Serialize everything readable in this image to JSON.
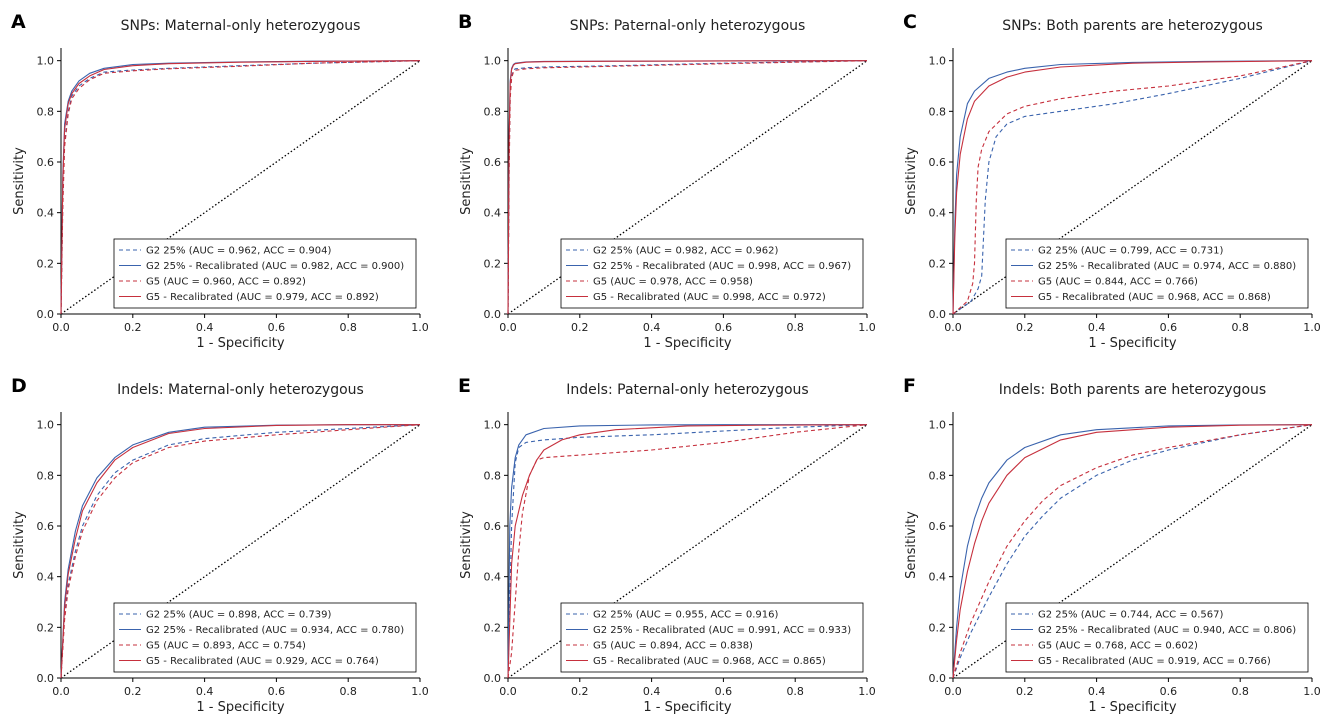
{
  "figure": {
    "colors": {
      "blue": "#3a63ad",
      "red": "#c6303d",
      "diagonal": "#000000"
    },
    "series_style": [
      {
        "color": "blue",
        "dash": "dashed"
      },
      {
        "color": "blue",
        "dash": "solid"
      },
      {
        "color": "red",
        "dash": "dashed"
      },
      {
        "color": "red",
        "dash": "solid"
      }
    ]
  },
  "chart_data": [
    {
      "panel": "A",
      "type": "line",
      "title": "SNPs: Maternal-only heterozygous",
      "xlabel": "1 - Specificity",
      "ylabel": "Sensitivity",
      "xlim": [
        0,
        1
      ],
      "ylim": [
        0,
        1.05
      ],
      "xticks": [
        "0.0",
        "0.2",
        "0.4",
        "0.6",
        "0.8",
        "1.0"
      ],
      "yticks": [
        "0.0",
        "0.2",
        "0.4",
        "0.6",
        "0.8",
        "1.0"
      ],
      "legend_position": "lower-right",
      "reference_line": "diagonal",
      "series": [
        {
          "name": "G2 25%",
          "legend": "G2 25%  (AUC = 0.962, ACC = 0.904)",
          "x": [
            0,
            0.005,
            0.01,
            0.02,
            0.03,
            0.05,
            0.08,
            0.12,
            0.2,
            0.3,
            0.5,
            0.7,
            1.0
          ],
          "y": [
            0,
            0.45,
            0.68,
            0.8,
            0.86,
            0.9,
            0.93,
            0.955,
            0.963,
            0.97,
            0.98,
            0.99,
            1.0
          ]
        },
        {
          "name": "G2 25% - Recalibrated",
          "legend": "G2 25% - Recalibrated (AUC = 0.982, ACC = 0.900)",
          "x": [
            0,
            0.005,
            0.01,
            0.02,
            0.03,
            0.05,
            0.08,
            0.12,
            0.2,
            0.3,
            0.5,
            0.7,
            1.0
          ],
          "y": [
            0,
            0.55,
            0.75,
            0.84,
            0.88,
            0.92,
            0.95,
            0.97,
            0.985,
            0.99,
            0.995,
            0.998,
            1.0
          ]
        },
        {
          "name": "G5",
          "legend": "G5  (AUC = 0.960, ACC = 0.892)",
          "x": [
            0,
            0.005,
            0.01,
            0.02,
            0.03,
            0.05,
            0.08,
            0.12,
            0.2,
            0.3,
            0.5,
            0.7,
            1.0
          ],
          "y": [
            0,
            0.42,
            0.66,
            0.79,
            0.85,
            0.89,
            0.925,
            0.95,
            0.96,
            0.968,
            0.978,
            0.99,
            1.0
          ]
        },
        {
          "name": "G5 - Recalibrated",
          "legend": "G5 - Recalibrated (AUC = 0.979, ACC = 0.892)",
          "x": [
            0,
            0.005,
            0.01,
            0.02,
            0.03,
            0.05,
            0.08,
            0.12,
            0.2,
            0.3,
            0.5,
            0.7,
            1.0
          ],
          "y": [
            0,
            0.52,
            0.73,
            0.83,
            0.87,
            0.91,
            0.94,
            0.965,
            0.98,
            0.988,
            0.994,
            0.997,
            1.0
          ]
        }
      ]
    },
    {
      "panel": "B",
      "type": "line",
      "title": "SNPs: Paternal-only heterozygous",
      "xlabel": "1 - Specificity",
      "ylabel": "Sensitivity",
      "xlim": [
        0,
        1
      ],
      "ylim": [
        0,
        1.05
      ],
      "xticks": [
        "0.0",
        "0.2",
        "0.4",
        "0.6",
        "0.8",
        "1.0"
      ],
      "yticks": [
        "0.0",
        "0.2",
        "0.4",
        "0.6",
        "0.8",
        "1.0"
      ],
      "legend_position": "lower-right",
      "reference_line": "diagonal",
      "series": [
        {
          "name": "G2 25%",
          "legend": "G2 25%  (AUC = 0.982, ACC = 0.962)",
          "x": [
            0,
            0.003,
            0.006,
            0.01,
            0.015,
            0.02,
            0.05,
            0.1,
            0.3,
            0.6,
            1.0
          ],
          "y": [
            0,
            0.6,
            0.88,
            0.94,
            0.96,
            0.968,
            0.972,
            0.975,
            0.98,
            0.99,
            1.0
          ]
        },
        {
          "name": "G2 25% - Recalibrated",
          "legend": "G2 25% - Recalibrated (AUC = 0.998, ACC = 0.967)",
          "x": [
            0,
            0.003,
            0.006,
            0.01,
            0.015,
            0.02,
            0.05,
            0.1,
            0.3,
            0.6,
            1.0
          ],
          "y": [
            0,
            0.7,
            0.92,
            0.97,
            0.985,
            0.99,
            0.995,
            0.997,
            0.998,
            0.999,
            1.0
          ]
        },
        {
          "name": "G5",
          "legend": "G5  (AUC = 0.978, ACC = 0.958)",
          "x": [
            0,
            0.003,
            0.006,
            0.01,
            0.015,
            0.02,
            0.05,
            0.1,
            0.3,
            0.6,
            1.0
          ],
          "y": [
            0,
            0.55,
            0.85,
            0.93,
            0.955,
            0.962,
            0.968,
            0.972,
            0.978,
            0.988,
            1.0
          ]
        },
        {
          "name": "G5 - Recalibrated",
          "legend": "G5 - Recalibrated (AUC = 0.998, ACC = 0.972)",
          "x": [
            0,
            0.003,
            0.006,
            0.01,
            0.015,
            0.02,
            0.05,
            0.1,
            0.3,
            0.6,
            1.0
          ],
          "y": [
            0,
            0.68,
            0.91,
            0.965,
            0.982,
            0.988,
            0.994,
            0.996,
            0.998,
            0.999,
            1.0
          ]
        }
      ]
    },
    {
      "panel": "C",
      "type": "line",
      "title": "SNPs: Both parents are heterozygous",
      "xlabel": "1 - Specificity",
      "ylabel": "Sensitivity",
      "xlim": [
        0,
        1
      ],
      "ylim": [
        0,
        1.05
      ],
      "xticks": [
        "0.0",
        "0.2",
        "0.4",
        "0.6",
        "0.8",
        "1.0"
      ],
      "yticks": [
        "0.0",
        "0.2",
        "0.4",
        "0.6",
        "0.8",
        "1.0"
      ],
      "legend_position": "lower-right",
      "reference_line": "diagonal",
      "series": [
        {
          "name": "G2 25%",
          "legend": "G2 25%  (AUC = 0.799, ACC = 0.731)",
          "x": [
            0,
            0.05,
            0.07,
            0.08,
            0.09,
            0.1,
            0.12,
            0.15,
            0.2,
            0.3,
            0.45,
            0.6,
            0.8,
            1.0
          ],
          "y": [
            0,
            0.05,
            0.1,
            0.15,
            0.45,
            0.6,
            0.7,
            0.75,
            0.78,
            0.8,
            0.83,
            0.87,
            0.93,
            1.0
          ]
        },
        {
          "name": "G2 25% - Recalibrated",
          "legend": "G2 25% - Recalibrated (AUC = 0.974, ACC = 0.880)",
          "x": [
            0,
            0.005,
            0.01,
            0.02,
            0.04,
            0.06,
            0.1,
            0.15,
            0.2,
            0.3,
            0.5,
            0.7,
            1.0
          ],
          "y": [
            0,
            0.35,
            0.55,
            0.7,
            0.83,
            0.88,
            0.93,
            0.955,
            0.97,
            0.985,
            0.993,
            0.997,
            1.0
          ]
        },
        {
          "name": "G5",
          "legend": "G5  (AUC = 0.844, ACC = 0.766)",
          "x": [
            0,
            0.04,
            0.055,
            0.06,
            0.065,
            0.07,
            0.08,
            0.1,
            0.15,
            0.2,
            0.3,
            0.45,
            0.6,
            0.8,
            1.0
          ],
          "y": [
            0,
            0.05,
            0.12,
            0.2,
            0.45,
            0.58,
            0.65,
            0.72,
            0.79,
            0.82,
            0.85,
            0.88,
            0.9,
            0.94,
            1.0
          ]
        },
        {
          "name": "G5 - Recalibrated",
          "legend": "G5 - Recalibrated (AUC = 0.968, ACC = 0.868)",
          "x": [
            0,
            0.005,
            0.01,
            0.02,
            0.04,
            0.06,
            0.1,
            0.15,
            0.2,
            0.3,
            0.5,
            0.7,
            1.0
          ],
          "y": [
            0,
            0.3,
            0.48,
            0.63,
            0.77,
            0.84,
            0.9,
            0.935,
            0.955,
            0.975,
            0.99,
            0.995,
            1.0
          ]
        }
      ]
    },
    {
      "panel": "D",
      "type": "line",
      "title": "Indels: Maternal-only heterozygous",
      "xlabel": "1 - Specificity",
      "ylabel": "Sensitivity",
      "xlim": [
        0,
        1
      ],
      "ylim": [
        0,
        1.05
      ],
      "xticks": [
        "0.0",
        "0.2",
        "0.4",
        "0.6",
        "0.8",
        "1.0"
      ],
      "yticks": [
        "0.0",
        "0.2",
        "0.4",
        "0.6",
        "0.8",
        "1.0"
      ],
      "legend_position": "lower-right",
      "reference_line": "diagonal",
      "series": [
        {
          "name": "G2 25%",
          "legend": "G2 25%  (AUC = 0.898, ACC = 0.739)",
          "x": [
            0,
            0.01,
            0.02,
            0.04,
            0.06,
            0.1,
            0.15,
            0.2,
            0.3,
            0.4,
            0.6,
            0.8,
            1.0
          ],
          "y": [
            0,
            0.25,
            0.37,
            0.5,
            0.6,
            0.72,
            0.81,
            0.86,
            0.92,
            0.945,
            0.97,
            0.985,
            1.0
          ]
        },
        {
          "name": "G2 25% - Recalibrated",
          "legend": "G2 25% - Recalibrated (AUC = 0.934, ACC = 0.780)",
          "x": [
            0,
            0.01,
            0.02,
            0.04,
            0.06,
            0.1,
            0.15,
            0.2,
            0.3,
            0.4,
            0.6,
            0.8,
            1.0
          ],
          "y": [
            0,
            0.3,
            0.43,
            0.58,
            0.68,
            0.79,
            0.87,
            0.92,
            0.97,
            0.99,
            0.998,
            1.0,
            1.0
          ]
        },
        {
          "name": "G5",
          "legend": "G5  (AUC = 0.893, ACC = 0.754)",
          "x": [
            0,
            0.01,
            0.02,
            0.04,
            0.06,
            0.1,
            0.15,
            0.2,
            0.3,
            0.4,
            0.6,
            0.8,
            1.0
          ],
          "y": [
            0,
            0.23,
            0.35,
            0.48,
            0.58,
            0.7,
            0.79,
            0.85,
            0.91,
            0.935,
            0.96,
            0.98,
            1.0
          ]
        },
        {
          "name": "G5 - Recalibrated",
          "legend": "G5 - Recalibrated (AUC = 0.929, ACC = 0.764)",
          "x": [
            0,
            0.01,
            0.02,
            0.04,
            0.06,
            0.1,
            0.15,
            0.2,
            0.3,
            0.4,
            0.6,
            0.8,
            1.0
          ],
          "y": [
            0,
            0.28,
            0.41,
            0.55,
            0.66,
            0.77,
            0.86,
            0.91,
            0.965,
            0.985,
            0.997,
            1.0,
            1.0
          ]
        }
      ]
    },
    {
      "panel": "E",
      "type": "line",
      "title": "Indels: Paternal-only heterozygous",
      "xlabel": "1 - Specificity",
      "ylabel": "Sensitivity",
      "xlim": [
        0,
        1
      ],
      "ylim": [
        0,
        1.05
      ],
      "xticks": [
        "0.0",
        "0.2",
        "0.4",
        "0.6",
        "0.8",
        "1.0"
      ],
      "yticks": [
        "0.0",
        "0.2",
        "0.4",
        "0.6",
        "0.8",
        "1.0"
      ],
      "legend_position": "lower-right",
      "reference_line": "diagonal",
      "series": [
        {
          "name": "G2 25%",
          "legend": "G2 25%  (AUC = 0.955, ACC = 0.916)",
          "x": [
            0,
            0.005,
            0.01,
            0.02,
            0.03,
            0.05,
            0.1,
            0.2,
            0.4,
            0.6,
            0.8,
            1.0
          ],
          "y": [
            0,
            0.3,
            0.6,
            0.85,
            0.91,
            0.93,
            0.94,
            0.95,
            0.96,
            0.975,
            0.99,
            1.0
          ]
        },
        {
          "name": "G2 25% - Recalibrated",
          "legend": "G2 25% - Recalibrated (AUC = 0.991, ACC = 0.933)",
          "x": [
            0,
            0.005,
            0.01,
            0.02,
            0.03,
            0.05,
            0.1,
            0.2,
            0.4,
            0.6,
            0.8,
            1.0
          ],
          "y": [
            0,
            0.6,
            0.75,
            0.87,
            0.92,
            0.96,
            0.985,
            0.995,
            0.999,
            1.0,
            1.0,
            1.0
          ]
        },
        {
          "name": "G5",
          "legend": "G5  (AUC = 0.894, ACC = 0.838)",
          "x": [
            0,
            0.01,
            0.02,
            0.03,
            0.04,
            0.06,
            0.08,
            0.1,
            0.2,
            0.4,
            0.6,
            0.8,
            1.0
          ],
          "y": [
            0,
            0.1,
            0.3,
            0.5,
            0.65,
            0.8,
            0.86,
            0.87,
            0.88,
            0.9,
            0.93,
            0.97,
            1.0
          ]
        },
        {
          "name": "G5 - Recalibrated",
          "legend": "G5 - Recalibrated (AUC = 0.968, ACC = 0.865)",
          "x": [
            0,
            0.01,
            0.02,
            0.04,
            0.06,
            0.08,
            0.1,
            0.15,
            0.2,
            0.3,
            0.5,
            0.7,
            1.0
          ],
          "y": [
            0,
            0.45,
            0.6,
            0.72,
            0.8,
            0.86,
            0.9,
            0.94,
            0.96,
            0.98,
            0.995,
            0.998,
            1.0
          ]
        }
      ]
    },
    {
      "panel": "F",
      "type": "line",
      "title": "Indels: Both parents are heterozygous",
      "xlabel": "1 - Specificity",
      "ylabel": "Sensitivity",
      "xlim": [
        0,
        1
      ],
      "ylim": [
        0,
        1.05
      ],
      "xticks": [
        "0.0",
        "0.2",
        "0.4",
        "0.6",
        "0.8",
        "1.0"
      ],
      "yticks": [
        "0.0",
        "0.2",
        "0.4",
        "0.6",
        "0.8",
        "1.0"
      ],
      "legend_position": "lower-right",
      "reference_line": "diagonal",
      "series": [
        {
          "name": "G2 25%",
          "legend": "G2 25%  (AUC = 0.744, ACC = 0.567)",
          "x": [
            0,
            0.02,
            0.05,
            0.1,
            0.15,
            0.2,
            0.25,
            0.3,
            0.4,
            0.5,
            0.6,
            0.8,
            1.0
          ],
          "y": [
            0,
            0.08,
            0.18,
            0.32,
            0.45,
            0.56,
            0.64,
            0.71,
            0.8,
            0.86,
            0.9,
            0.96,
            1.0
          ]
        },
        {
          "name": "G2 25% - Recalibrated",
          "legend": "G2 25% - Recalibrated (AUC = 0.940, ACC = 0.806)",
          "x": [
            0,
            0.01,
            0.02,
            0.04,
            0.06,
            0.08,
            0.1,
            0.15,
            0.2,
            0.3,
            0.4,
            0.6,
            0.8,
            1.0
          ],
          "y": [
            0,
            0.2,
            0.35,
            0.52,
            0.63,
            0.71,
            0.77,
            0.86,
            0.91,
            0.96,
            0.98,
            0.995,
            0.999,
            1.0
          ]
        },
        {
          "name": "G5",
          "legend": "G5  (AUC = 0.768, ACC = 0.602)",
          "x": [
            0,
            0.02,
            0.05,
            0.1,
            0.15,
            0.2,
            0.25,
            0.3,
            0.4,
            0.5,
            0.6,
            0.8,
            1.0
          ],
          "y": [
            0,
            0.1,
            0.22,
            0.38,
            0.52,
            0.62,
            0.7,
            0.76,
            0.83,
            0.88,
            0.91,
            0.96,
            1.0
          ]
        },
        {
          "name": "G5 - Recalibrated",
          "legend": "G5 - Recalibrated (AUC = 0.919, ACC = 0.766)",
          "x": [
            0,
            0.01,
            0.02,
            0.04,
            0.06,
            0.08,
            0.1,
            0.15,
            0.2,
            0.3,
            0.4,
            0.6,
            0.8,
            1.0
          ],
          "y": [
            0,
            0.15,
            0.27,
            0.42,
            0.53,
            0.62,
            0.69,
            0.8,
            0.87,
            0.94,
            0.97,
            0.99,
            0.998,
            1.0
          ]
        }
      ]
    }
  ]
}
